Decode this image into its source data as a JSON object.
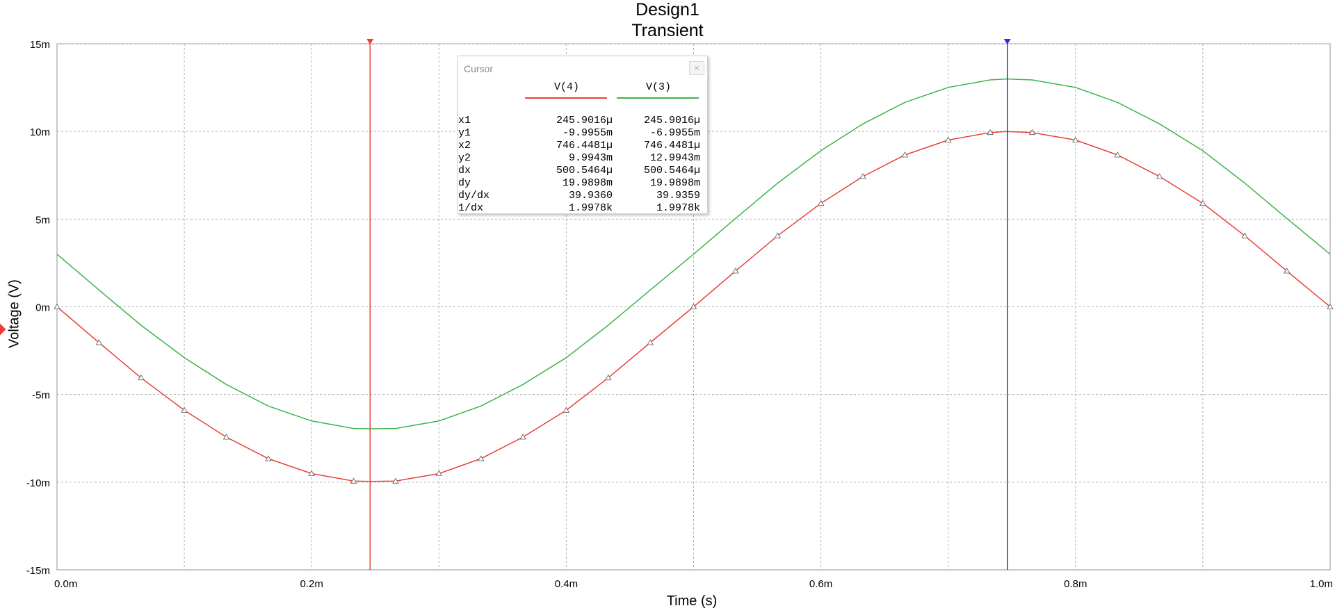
{
  "chart_data": {
    "type": "line",
    "title": "Design1",
    "subtitle": "Transient",
    "xlabel": "Time (s)",
    "ylabel": "Voltage (V)",
    "xlim": [
      0,
      0.001
    ],
    "ylim": [
      -0.015,
      0.015
    ],
    "x_ticks": [
      0,
      0.0002,
      0.0004,
      0.0006,
      0.0008,
      0.001
    ],
    "x_tick_labels": [
      "0.0m",
      "0.2m",
      "0.4m",
      "0.6m",
      "0.8m",
      "1.0m"
    ],
    "y_ticks": [
      0.015,
      0.01,
      0.005,
      0,
      -0.005,
      -0.01,
      -0.015
    ],
    "y_tick_labels": [
      "15m",
      "10m",
      "5m",
      "0m",
      "-5m",
      "-10m",
      "-15m"
    ],
    "grid": true,
    "series": [
      {
        "name": "V(4)",
        "color": "#e8413a",
        "markers": true,
        "x": [
          0,
          3.3e-05,
          6.6e-05,
          0.0001,
          0.000133,
          0.000166,
          0.0002,
          0.000233,
          0.000246,
          0.000266,
          0.0003,
          0.000333,
          0.000366,
          0.0004,
          0.000433,
          0.000466,
          0.0005,
          0.000533,
          0.000566,
          0.0006,
          0.000633,
          0.000666,
          0.0007,
          0.000733,
          0.000746,
          0.000766,
          0.0008,
          0.000833,
          0.000866,
          0.0009,
          0.000933,
          0.000966,
          0.001
        ],
        "y": [
          0,
          -0.00204,
          -0.00405,
          -0.0059,
          -0.00743,
          -0.00866,
          -0.00951,
          -0.00994,
          -0.009955,
          -0.00994,
          -0.00951,
          -0.00866,
          -0.00743,
          -0.0059,
          -0.00405,
          -0.00204,
          0,
          0.00204,
          0.00405,
          0.0059,
          0.00743,
          0.00866,
          0.00951,
          0.00994,
          0.009994,
          0.00994,
          0.00951,
          0.00866,
          0.00743,
          0.0059,
          0.00405,
          0.00204,
          0
        ]
      },
      {
        "name": "V(3)",
        "color": "#39b54a",
        "markers": false,
        "x": [
          0,
          3.3e-05,
          6.6e-05,
          0.0001,
          0.000133,
          0.000166,
          0.0002,
          0.000233,
          0.000246,
          0.000266,
          0.0003,
          0.000333,
          0.000366,
          0.0004,
          0.000433,
          0.000466,
          0.0005,
          0.000533,
          0.000566,
          0.0006,
          0.000633,
          0.000666,
          0.0007,
          0.000733,
          0.000746,
          0.000766,
          0.0008,
          0.000833,
          0.000866,
          0.0009,
          0.000933,
          0.000966,
          0.001
        ],
        "y": [
          0.003,
          0.00096,
          -0.00105,
          -0.0029,
          -0.00443,
          -0.00566,
          -0.00651,
          -0.00694,
          -0.006955,
          -0.00694,
          -0.00651,
          -0.00566,
          -0.00443,
          -0.0029,
          -0.00105,
          0.00096,
          0.003,
          0.00504,
          0.00705,
          0.0089,
          0.01043,
          0.01166,
          0.01251,
          0.01294,
          0.012994,
          0.01294,
          0.01251,
          0.01166,
          0.01043,
          0.0089,
          0.00705,
          0.00504,
          0.003
        ]
      }
    ],
    "cursors": [
      {
        "name": "1",
        "x": 0.0002459016,
        "color": "#e8413a"
      },
      {
        "name": "2",
        "x": 0.0007464481,
        "color": "#3030e0"
      }
    ]
  },
  "cursor_panel": {
    "title": "Cursor",
    "close_label": "×",
    "columns": [
      "V(4)",
      "V(3)"
    ],
    "rows": [
      {
        "label": "x1",
        "v1": "245.9016µ",
        "v2": "245.9016µ"
      },
      {
        "label": "y1",
        "v1": "-9.9955m",
        "v2": "-6.9955m"
      },
      {
        "label": "x2",
        "v1": "746.4481µ",
        "v2": "746.4481µ"
      },
      {
        "label": "y2",
        "v1": "9.9943m",
        "v2": "12.9943m"
      },
      {
        "label": "dx",
        "v1": "500.5464µ",
        "v2": "500.5464µ"
      },
      {
        "label": "dy",
        "v1": "19.9898m",
        "v2": "19.9898m"
      },
      {
        "label": "dy/dx",
        "v1": "39.9360",
        "v2": "39.9359"
      },
      {
        "label": "1/dx",
        "v1": "1.9978k",
        "v2": "1.9978k"
      }
    ]
  }
}
